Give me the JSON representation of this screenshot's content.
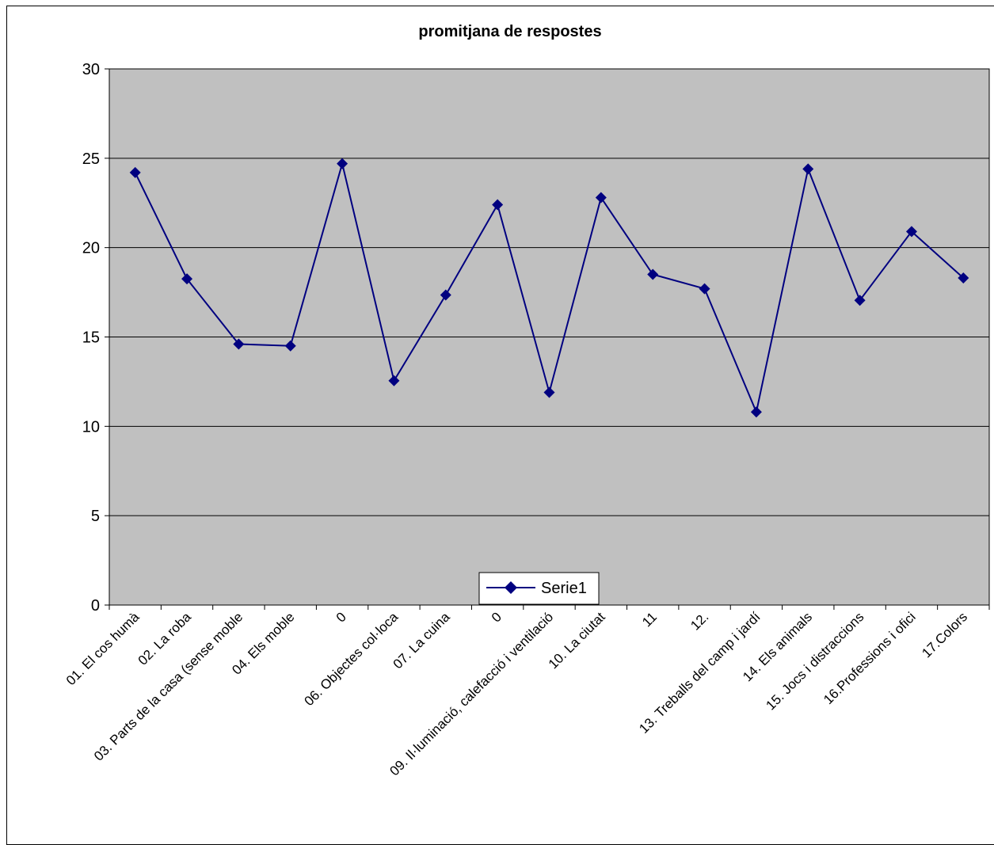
{
  "chart_data": {
    "type": "line",
    "title": "promitjana de respostes",
    "xlabel": "",
    "ylabel": "",
    "ylim": [
      0,
      30
    ],
    "yticks": [
      0,
      5,
      10,
      15,
      20,
      25,
      30
    ],
    "grid": true,
    "legend": "bottom",
    "categories": [
      "01. El cos humà",
      "02. La roba",
      "03. Parts de la casa (sense moble",
      "04. Els moble",
      "0",
      "06. Objectes col·loca",
      "07. La cuina",
      "0",
      "09. Il·luminació, calefacció i ventilació",
      "10. La ciutat",
      "11",
      "12. ",
      "13. Treballs del camp i jardí",
      "14. Els animals",
      "15. Jocs i distraccions",
      "16.Professions i ofici",
      "17.Colors"
    ],
    "series": [
      {
        "name": "Serie1",
        "color": "#000080",
        "values": [
          24.2,
          18.25,
          14.6,
          14.5,
          24.7,
          12.55,
          17.35,
          22.4,
          11.9,
          22.8,
          18.5,
          17.7,
          10.8,
          24.4,
          17.05,
          20.9,
          18.3
        ]
      }
    ],
    "colors": {
      "plot_background": "#c0c0c0",
      "gridline": "#000000",
      "series": "#000080"
    }
  }
}
